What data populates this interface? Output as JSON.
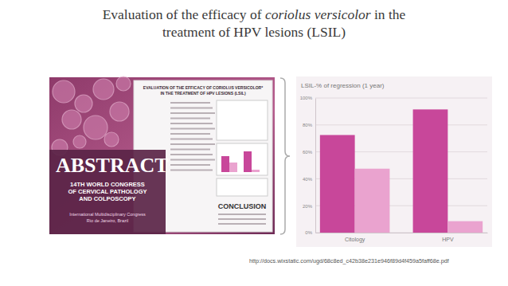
{
  "slide": {
    "title_lines": [
      [
        "Evaluation of the efficacy of ",
        "coriolus versicolor",
        " in the"
      ],
      [
        "treatment of HPV lesions (LSIL)"
      ]
    ],
    "source_url": "http://docs.wixstatic.com/ugd/68c8ed_c42b38e231e946f89d4f459a5faff68e.pdf",
    "poster": {
      "title_lines": [
        "EVALUATION OF THE EFFICACY OF CORIOLUS VERSICOLOR*",
        "IN THE TREATMENT OF HPV LESIONS (LSIL)"
      ],
      "badge": "ABSTRACT",
      "congress_lines": [
        "14TH WORLD CONGRESS",
        "OF CERVICAL PATHOLOGY",
        "AND COLPOSCOPY"
      ],
      "congress_sub": [
        "International Multidisciplinary Congress",
        "Rio de Janeiro, Brazil"
      ],
      "conclusion": "CONCLUSION"
    }
  },
  "chart_data": {
    "type": "bar",
    "title": "LSIL-% of regression (1 year)",
    "categories": [
      "Citology",
      "HPV"
    ],
    "series": [
      {
        "color": "#c8479a",
        "values": [
          72.5,
          91.5
        ]
      },
      {
        "color": "#eaa3cf",
        "values": [
          47.5,
          8.5
        ]
      }
    ],
    "ylim": [
      0,
      100
    ],
    "yticks": [
      {
        "value": 0,
        "label": "0%"
      },
      {
        "value": 20,
        "label": "20%"
      },
      {
        "value": 40,
        "label": "40%"
      },
      {
        "value": 60,
        "label": "60%"
      },
      {
        "value": 80,
        "label": "80%"
      },
      {
        "value": 100,
        "label": "100%"
      }
    ],
    "grid": true
  }
}
